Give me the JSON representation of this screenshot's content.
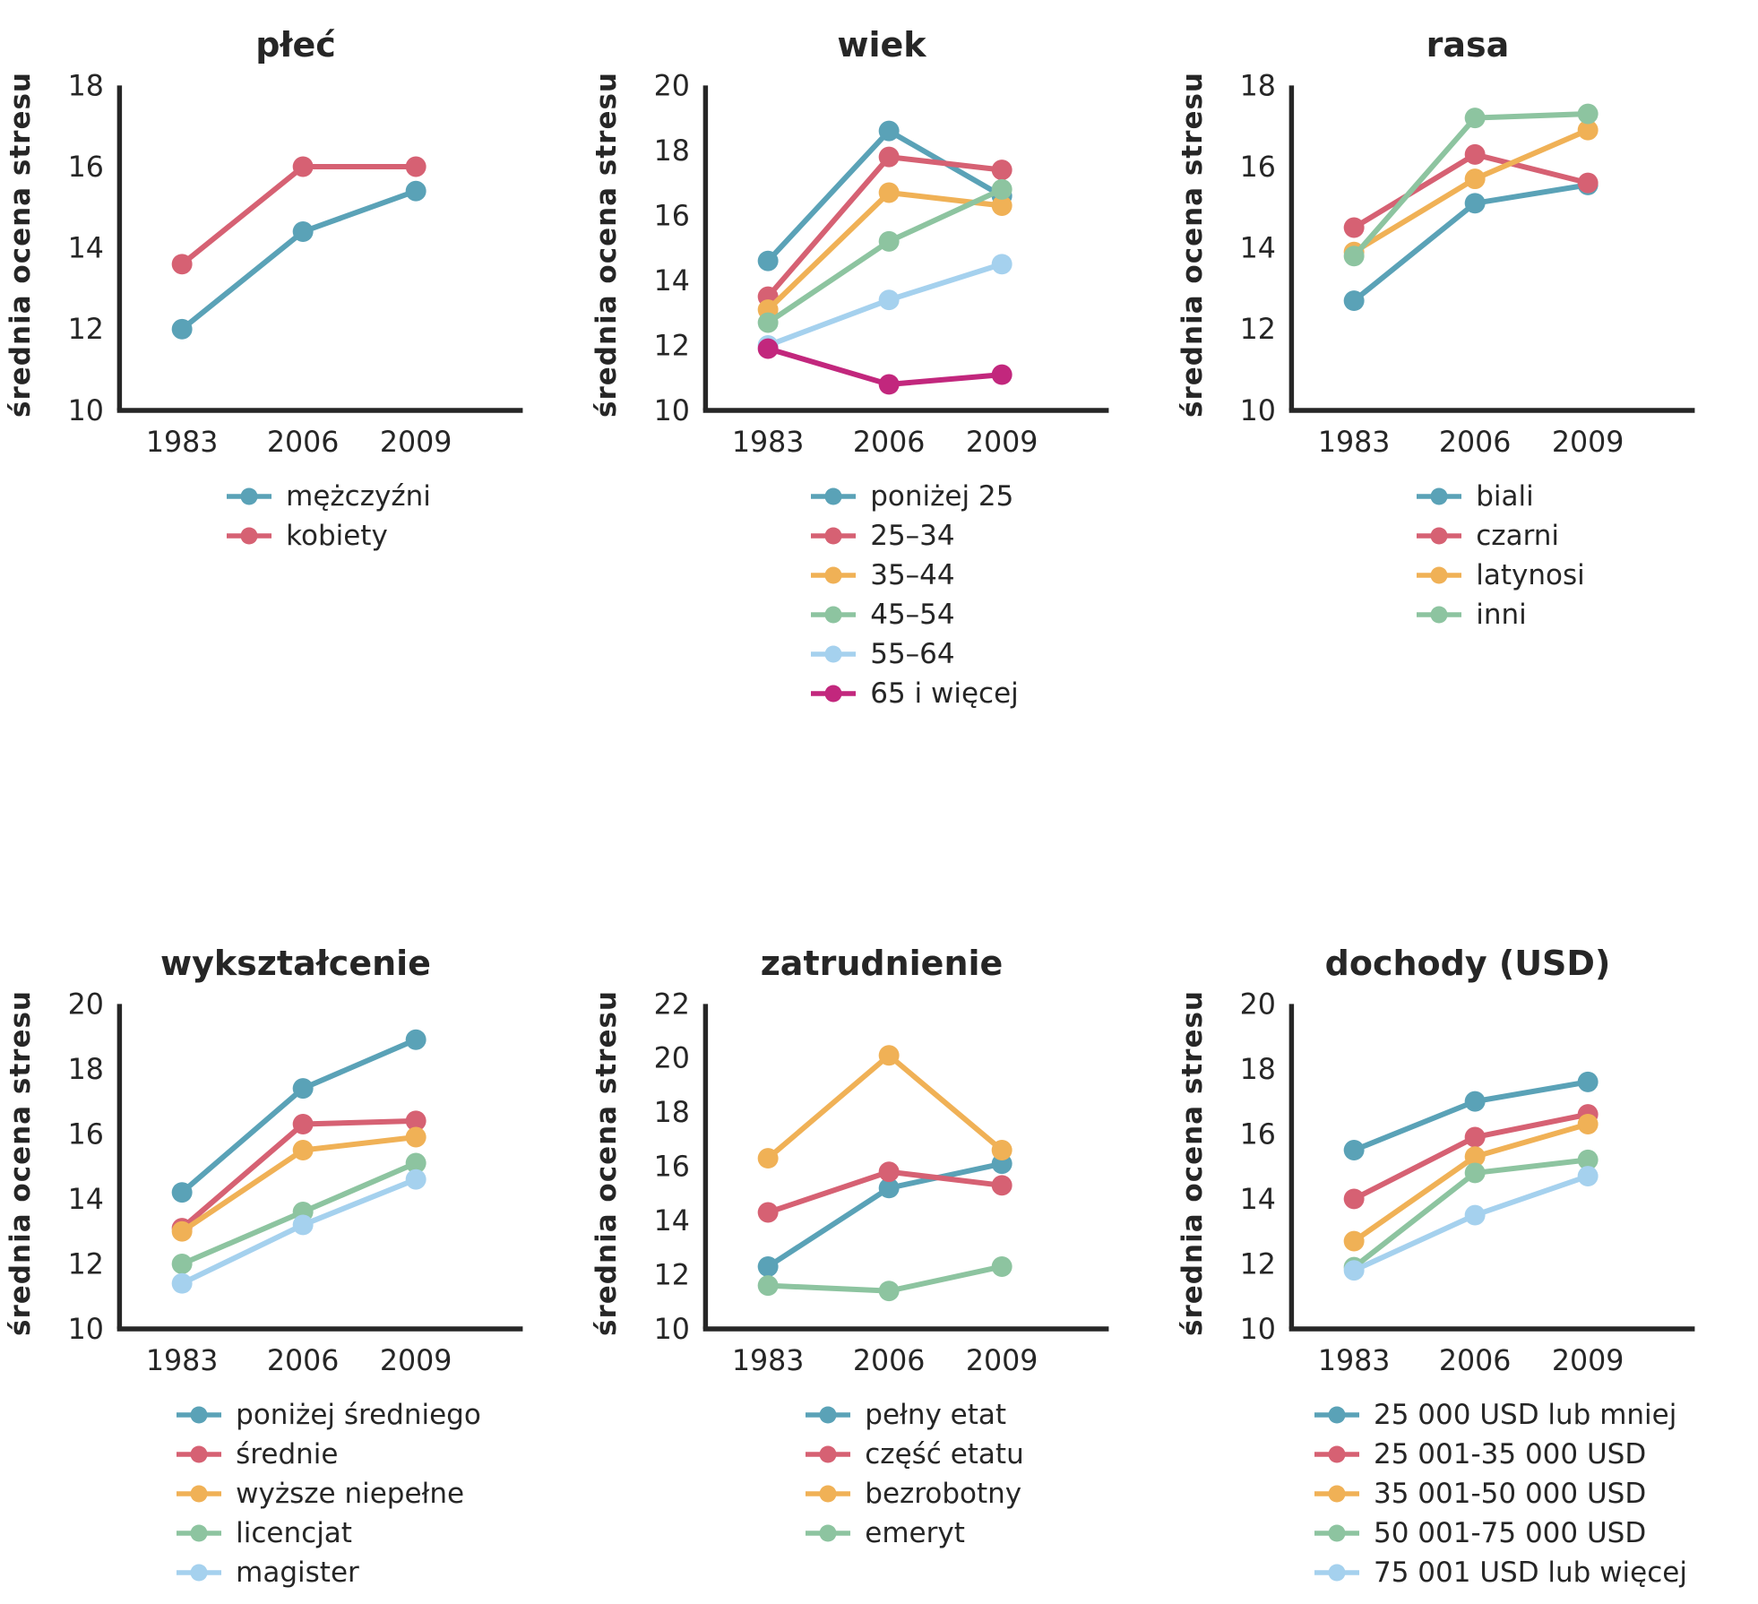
{
  "figure": {
    "x_tick_labels": [
      "1983",
      "2006",
      "2009"
    ],
    "text_color": "#262626",
    "background": "#ffffff"
  },
  "chart_data": [
    {
      "type": "line",
      "title": "płeć",
      "ylabel": "średnia ocena stresu",
      "categories": [
        "1983",
        "2006",
        "2009"
      ],
      "ylim": [
        10,
        18
      ],
      "yticks": [
        10,
        12,
        14,
        16,
        18
      ],
      "grid": false,
      "legend_position": "bottom",
      "series": [
        {
          "name": "mężczyźni",
          "color": "#5AA2B7",
          "values": [
            12.0,
            14.4,
            15.4
          ]
        },
        {
          "name": "kobiety",
          "color": "#D66173",
          "values": [
            13.6,
            16.0,
            16.0
          ]
        }
      ]
    },
    {
      "type": "line",
      "title": "wiek",
      "ylabel": "średnia ocena stresu",
      "categories": [
        "1983",
        "2006",
        "2009"
      ],
      "ylim": [
        10,
        20
      ],
      "yticks": [
        10,
        12,
        14,
        16,
        18,
        20
      ],
      "grid": false,
      "legend_position": "bottom",
      "series": [
        {
          "name": "poniżej 25",
          "color": "#5AA2B7",
          "values": [
            14.6,
            18.6,
            16.6
          ]
        },
        {
          "name": "25–34",
          "color": "#D66173",
          "values": [
            13.5,
            17.8,
            17.4
          ]
        },
        {
          "name": "35–44",
          "color": "#F0B156",
          "values": [
            13.1,
            16.7,
            16.3
          ]
        },
        {
          "name": "45–54",
          "color": "#8DC4A0",
          "values": [
            12.7,
            15.2,
            16.8
          ]
        },
        {
          "name": "55–64",
          "color": "#A5D1EE",
          "values": [
            12.0,
            13.4,
            14.5
          ]
        },
        {
          "name": "65 i więcej",
          "color": "#C2277D",
          "values": [
            11.9,
            10.8,
            11.1
          ]
        }
      ]
    },
    {
      "type": "line",
      "title": "rasa",
      "ylabel": "średnia ocena stresu",
      "categories": [
        "1983",
        "2006",
        "2009"
      ],
      "ylim": [
        10,
        18
      ],
      "yticks": [
        10,
        12,
        14,
        16,
        18
      ],
      "grid": false,
      "legend_position": "bottom",
      "series": [
        {
          "name": "biali",
          "color": "#5AA2B7",
          "values": [
            12.7,
            15.1,
            15.55
          ]
        },
        {
          "name": "czarni",
          "color": "#D66173",
          "values": [
            14.5,
            16.3,
            15.6
          ]
        },
        {
          "name": "latynosi",
          "color": "#F0B156",
          "values": [
            13.9,
            15.7,
            16.9
          ]
        },
        {
          "name": "inni",
          "color": "#8DC4A0",
          "values": [
            13.8,
            17.2,
            17.3
          ]
        }
      ]
    },
    {
      "type": "line",
      "title": "wykształcenie",
      "ylabel": "średnia ocena stresu",
      "categories": [
        "1983",
        "2006",
        "2009"
      ],
      "ylim": [
        10,
        20
      ],
      "yticks": [
        10,
        12,
        14,
        16,
        18,
        20
      ],
      "grid": false,
      "legend_position": "bottom",
      "series": [
        {
          "name": "poniżej średniego",
          "color": "#5AA2B7",
          "values": [
            14.2,
            17.4,
            18.9
          ]
        },
        {
          "name": "średnie",
          "color": "#D66173",
          "values": [
            13.1,
            16.3,
            16.4
          ]
        },
        {
          "name": "wyższe niepełne",
          "color": "#F0B156",
          "values": [
            13.0,
            15.5,
            15.9
          ]
        },
        {
          "name": "licencjat",
          "color": "#8DC4A0",
          "values": [
            12.0,
            13.6,
            15.1
          ]
        },
        {
          "name": "magister",
          "color": "#A5D1EE",
          "values": [
            11.4,
            13.2,
            14.6
          ]
        }
      ]
    },
    {
      "type": "line",
      "title": "zatrudnienie",
      "ylabel": "średnia ocena stresu",
      "categories": [
        "1983",
        "2006",
        "2009"
      ],
      "ylim": [
        10,
        22
      ],
      "yticks": [
        10,
        12,
        14,
        16,
        18,
        20,
        22
      ],
      "grid": false,
      "legend_position": "bottom",
      "series": [
        {
          "name": "pełny etat",
          "color": "#5AA2B7",
          "values": [
            12.3,
            15.2,
            16.1
          ]
        },
        {
          "name": "część etatu",
          "color": "#D66173",
          "values": [
            14.3,
            15.8,
            15.3
          ]
        },
        {
          "name": "bezrobotny",
          "color": "#F0B156",
          "values": [
            16.3,
            20.1,
            16.6
          ]
        },
        {
          "name": "emeryt",
          "color": "#8DC4A0",
          "values": [
            11.6,
            11.4,
            12.3
          ]
        }
      ]
    },
    {
      "type": "line",
      "title": "dochody (USD)",
      "ylabel": "średnia ocena stresu",
      "categories": [
        "1983",
        "2006",
        "2009"
      ],
      "ylim": [
        10,
        20
      ],
      "yticks": [
        10,
        12,
        14,
        16,
        18,
        20
      ],
      "grid": false,
      "legend_position": "bottom",
      "series": [
        {
          "name": "25 000 USD lub mniej",
          "color": "#5AA2B7",
          "values": [
            15.5,
            17.0,
            17.6
          ]
        },
        {
          "name": "25 001-35 000 USD",
          "color": "#D66173",
          "values": [
            14.0,
            15.9,
            16.6
          ]
        },
        {
          "name": "35 001-50 000 USD",
          "color": "#F0B156",
          "values": [
            12.7,
            15.3,
            16.3
          ]
        },
        {
          "name": "50 001-75 000 USD",
          "color": "#8DC4A0",
          "values": [
            11.9,
            14.8,
            15.2
          ]
        },
        {
          "name": "75 001 USD lub więcej",
          "color": "#A5D1EE",
          "values": [
            11.8,
            13.5,
            14.7
          ]
        }
      ]
    }
  ]
}
